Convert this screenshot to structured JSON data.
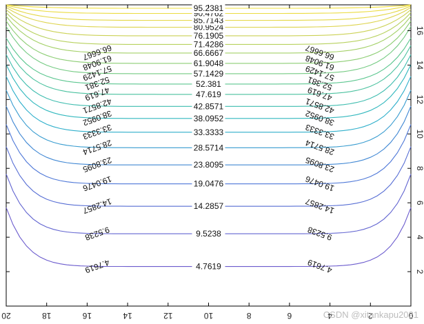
{
  "chart_data": {
    "type": "contour",
    "title": "",
    "xlabel": "",
    "ylabel": "",
    "x_axis": {
      "min": 0,
      "max": 20,
      "direction": "reversed",
      "ticks": [
        20,
        18,
        16,
        14,
        12,
        10,
        8,
        6,
        4,
        2,
        0
      ],
      "tick_labels": [
        "20",
        "18",
        "16",
        "14",
        "12",
        "10",
        "8",
        "6",
        "4",
        "2",
        "0"
      ],
      "labels_rotated_180": true
    },
    "y_axis": {
      "min": 0,
      "max": 17.5,
      "side": "right",
      "ticks": [
        2,
        4,
        6,
        8,
        10,
        12,
        14,
        16
      ],
      "tick_labels": [
        "2",
        "4",
        "6",
        "8",
        "10",
        "12",
        "14",
        "16"
      ],
      "labels_rotated_90": true
    },
    "boundary": {
      "top_value": 100,
      "other_edges_value": 0
    },
    "grid": false,
    "colormap": [
      "#6a5acd",
      "#4a78d8",
      "#28b4c8",
      "#4fc496",
      "#9cd06a",
      "#dcd24c",
      "#f2e03a"
    ],
    "levels": [
      {
        "value": 4.7619,
        "label": "4.7619",
        "center_y": 2.3
      },
      {
        "value": 9.5238,
        "label": "9.5238",
        "center_y": 4.2
      },
      {
        "value": 14.2857,
        "label": "14.2857",
        "center_y": 5.8
      },
      {
        "value": 19.0476,
        "label": "19.0476",
        "center_y": 7.1
      },
      {
        "value": 23.8095,
        "label": "23.8095",
        "center_y": 8.2
      },
      {
        "value": 28.5714,
        "label": "28.5714",
        "center_y": 9.2
      },
      {
        "value": 33.3333,
        "label": "33.3333",
        "center_y": 10.1
      },
      {
        "value": 38.0952,
        "label": "38.0952",
        "center_y": 10.9
      },
      {
        "value": 42.8571,
        "label": "42.8571",
        "center_y": 11.6
      },
      {
        "value": 47.619,
        "label": "47.619",
        "center_y": 12.3
      },
      {
        "value": 52.381,
        "label": "52.381",
        "center_y": 12.9
      },
      {
        "value": 57.1429,
        "label": "57.1429",
        "center_y": 13.5
      },
      {
        "value": 61.9048,
        "label": "61.9048",
        "center_y": 14.1
      },
      {
        "value": 66.6667,
        "label": "66.6667",
        "center_y": 14.7
      },
      {
        "value": 71.4286,
        "label": "71.4286",
        "center_y": 15.2
      },
      {
        "value": 76.1905,
        "label": "76.1905",
        "center_y": 15.7
      },
      {
        "value": 80.9524,
        "label": "80.9524",
        "center_y": 16.2
      },
      {
        "value": 85.7143,
        "label": "85.7143",
        "center_y": 16.6
      },
      {
        "value": 90.4762,
        "label": "90.4762",
        "center_y": 17.0
      },
      {
        "value": 95.2381,
        "label": "95.2381",
        "center_y": 17.3
      }
    ]
  },
  "watermark": "CSDN @xitankapu2021"
}
